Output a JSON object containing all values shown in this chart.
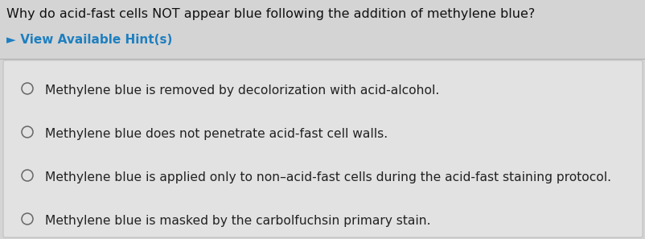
{
  "question": "Why do acid-fast cells NOT appear blue following the addition of methylene blue?",
  "hint_arrow": "►",
  "hint_label": " View Available Hint(s)",
  "hint_color": "#1e7fc0",
  "options": [
    "Methylene blue is removed by decolorization with acid-alcohol.",
    "Methylene blue does not penetrate acid-fast cell walls.",
    "Methylene blue is applied only to non–acid-fast cells during the acid-fast staining protocol.",
    "Methylene blue is masked by the carbolfuchsin primary stain."
  ],
  "bg_color": "#d4d4d4",
  "box_bg": "#e2e2e2",
  "box_edge": "#c0c0c0",
  "question_color": "#111111",
  "option_color": "#222222",
  "circle_color": "#666666",
  "question_fontsize": 11.5,
  "hint_fontsize": 11.0,
  "option_fontsize": 11.2,
  "fig_width": 8.03,
  "fig_height": 2.97,
  "dpi": 100
}
